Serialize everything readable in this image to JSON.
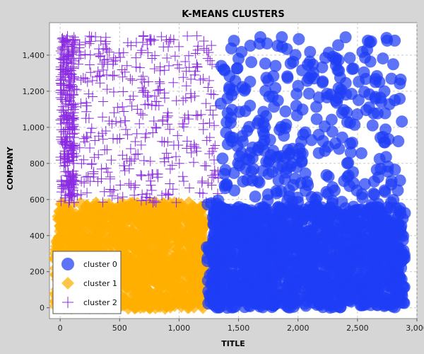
{
  "chart_data": {
    "type": "scatter",
    "title": "K-MEANS CLUSTERS",
    "xlabel": "TITLE",
    "ylabel": "COMPANY",
    "xlim": [
      -90,
      3000
    ],
    "ylim": [
      -60,
      1580
    ],
    "x_ticks": [
      0,
      500,
      1000,
      1500,
      2000,
      2500,
      3000
    ],
    "x_tick_labels": [
      "0",
      "500",
      "1,000",
      "1,500",
      "2,000",
      "2,500",
      "3,000"
    ],
    "y_ticks": [
      0,
      200,
      400,
      600,
      800,
      1000,
      1200,
      1400
    ],
    "y_tick_labels": [
      "0",
      "200",
      "400",
      "600",
      "800",
      "1,000",
      "1,200",
      "1,400"
    ],
    "grid": true,
    "legend_position": "bottom-left",
    "series": [
      {
        "name": "cluster 0",
        "marker": "circle",
        "color": "#1f3df5",
        "regions": [
          {
            "x": [
              1280,
              2900
            ],
            "y": [
              0,
              560
            ],
            "count": 1400
          },
          {
            "x": [
              1350,
              2880
            ],
            "y": [
              560,
              1510
            ],
            "count": 330
          },
          {
            "x": [
              1230,
              1350
            ],
            "y": [
              0,
              600
            ],
            "count": 60
          }
        ]
      },
      {
        "name": "cluster 1",
        "marker": "diamond",
        "color": "#ffae00",
        "regions": [
          {
            "x": [
              -40,
              1220
            ],
            "y": [
              0,
              580
            ],
            "count": 1100
          }
        ]
      },
      {
        "name": "cluster 2",
        "marker": "plus",
        "color": "#8a2be2",
        "regions": [
          {
            "x": [
              0,
              120
            ],
            "y": [
              580,
              1510
            ],
            "count": 260
          },
          {
            "x": [
              0,
              1330
            ],
            "y": [
              580,
              1510
            ],
            "count": 420
          }
        ]
      }
    ]
  }
}
